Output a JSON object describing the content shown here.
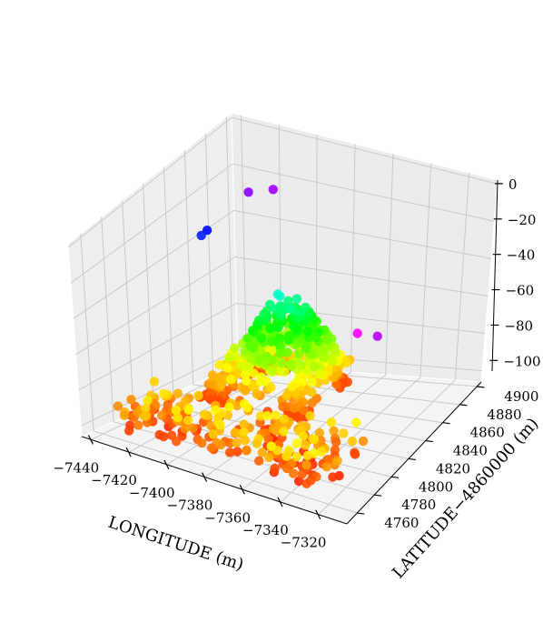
{
  "chart_data": {
    "type": "scatter",
    "projection": "3d",
    "title": "",
    "xlabel": "LONGITUDE (m)",
    "ylabel": "LATITUDE−4860000 (m)",
    "zlabel": "",
    "xlim": [
      -7445,
      -7305
    ],
    "ylim": [
      4748,
      4905
    ],
    "zlim": [
      -106,
      2
    ],
    "x_ticks": [
      "−7440",
      "−7420",
      "−7400",
      "−7380",
      "−7360",
      "−7340",
      "−7320"
    ],
    "y_ticks": [
      "4760",
      "4780",
      "4800",
      "4820",
      "4840",
      "4860",
      "4880",
      "4900"
    ],
    "z_ticks": [
      "0",
      "−20",
      "−40",
      "−60",
      "−80",
      "−100"
    ],
    "grid": true,
    "legend": "none",
    "colormap": "hsv",
    "colors": {
      "red": "#ff1a10",
      "orange_red": "#ff4a08",
      "orange": "#ff8c00",
      "yellow": "#ffe600",
      "lime": "#9cff00",
      "green": "#00ff1a",
      "spring_green": "#00ff8c",
      "cyan": "#00f0ff",
      "azure": "#0096ff",
      "blue": "#0050ff",
      "magenta": "#ff10f0"
    }
  }
}
